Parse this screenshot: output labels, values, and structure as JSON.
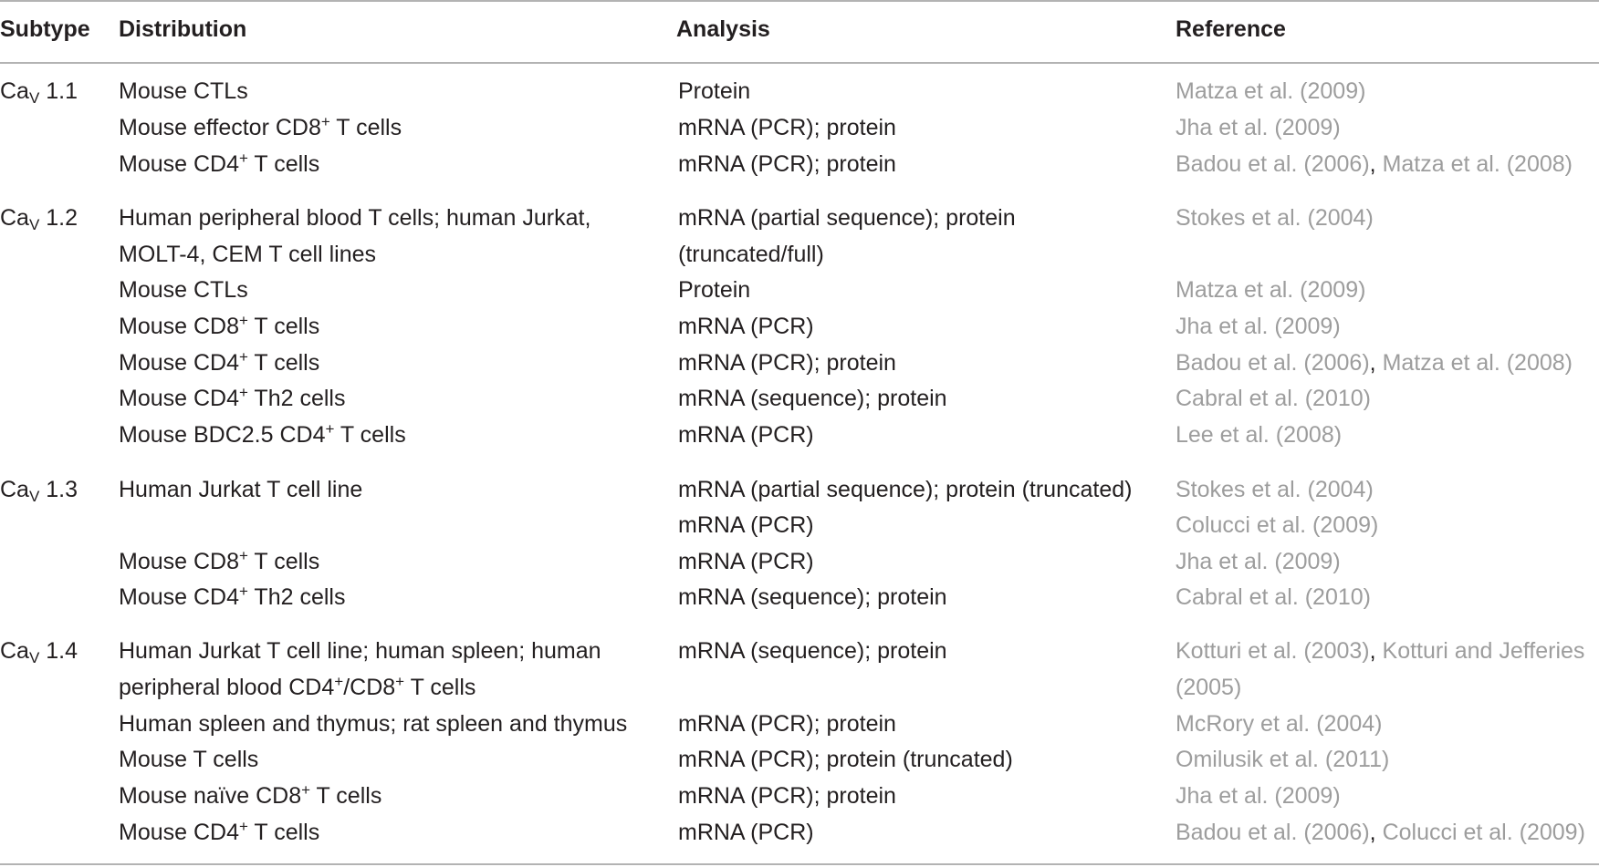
{
  "headers": {
    "subtype": "Subtype",
    "distribution": "Distribution",
    "analysis": "Analysis",
    "reference": "Reference"
  },
  "subtypes": {
    "s11": {
      "prefix": "Ca",
      "sub": "V",
      "suffix": "1.1"
    },
    "s12": {
      "prefix": "Ca",
      "sub": "V",
      "suffix": "1.2"
    },
    "s13": {
      "prefix": "Ca",
      "sub": "V",
      "suffix": "1.3"
    },
    "s14": {
      "prefix": "Ca",
      "sub": "V",
      "suffix": "1.4"
    }
  },
  "rows": {
    "r1": {
      "dist_a": "Mouse CTLs",
      "analysis": "Protein",
      "ref1": "Matza et al. (2009)"
    },
    "r2": {
      "dist_a": "Mouse effector CD8",
      "dist_sup": "+",
      "dist_b": " T cells",
      "analysis": "mRNA (PCR); protein",
      "ref1": "Jha et al. (2009)"
    },
    "r3": {
      "dist_a": "Mouse CD4",
      "dist_sup": "+",
      "dist_b": " T cells",
      "analysis": "mRNA (PCR); protein",
      "ref1": "Badou et al. (2006)",
      "ref_sep": ", ",
      "ref2": "Matza et al. (2008)"
    },
    "r4": {
      "dist_line1": "Human peripheral blood T cells; human Jurkat,",
      "dist_line2": "MOLT-4, CEM T cell lines",
      "analysis_line1": "mRNA (partial sequence); protein",
      "analysis_line2": "(truncated/full)",
      "ref1": "Stokes et al. (2004)"
    },
    "r5": {
      "dist_a": "Mouse CTLs",
      "analysis": "Protein",
      "ref1": "Matza et al. (2009)"
    },
    "r6": {
      "dist_a": "Mouse CD8",
      "dist_sup": "+",
      "dist_b": " T cells",
      "analysis": "mRNA (PCR)",
      "ref1": "Jha et al. (2009)"
    },
    "r7": {
      "dist_a": "Mouse CD4",
      "dist_sup": "+",
      "dist_b": " T cells",
      "analysis": "mRNA (PCR); protein",
      "ref1": "Badou et al. (2006)",
      "ref_sep": ", ",
      "ref2": "Matza et al. (2008)"
    },
    "r8": {
      "dist_a": "Mouse CD4",
      "dist_sup": "+",
      "dist_b": " Th2 cells",
      "analysis": "mRNA (sequence); protein",
      "ref1": "Cabral et al. (2010)"
    },
    "r9": {
      "dist_a": "Mouse BDC2.5 CD4",
      "dist_sup": "+",
      "dist_b": " T cells",
      "analysis": "mRNA (PCR)",
      "ref1": "Lee et al. (2008)"
    },
    "r10": {
      "dist_a": "Human Jurkat T cell line",
      "analysis": "mRNA (partial sequence); protein (truncated)",
      "ref1": "Stokes et al. (2004)"
    },
    "r11": {
      "analysis": "mRNA (PCR)",
      "ref1": "Colucci et al. (2009)"
    },
    "r12": {
      "dist_a": "Mouse CD8",
      "dist_sup": "+",
      "dist_b": " T cells",
      "analysis": "mRNA (PCR)",
      "ref1": "Jha et al. (2009)"
    },
    "r13": {
      "dist_a": "Mouse CD4",
      "dist_sup": "+",
      "dist_b": " Th2 cells",
      "analysis": "mRNA (sequence); protein",
      "ref1": "Cabral et al. (2010)"
    },
    "r14": {
      "dist_line1": "Human Jurkat T cell line; human spleen; human",
      "dist_l2_a": "peripheral blood CD4",
      "dist_l2_sup1": "+",
      "dist_l2_b": "/CD8",
      "dist_l2_sup2": "+",
      "dist_l2_c": " T cells",
      "analysis": "mRNA (sequence); protein",
      "ref1": "Kotturi et al. (2003)",
      "ref_sep": ", ",
      "ref2": "Kotturi and Jefferies",
      "ref2_line2": "(2005)"
    },
    "r15": {
      "dist_a": "Human spleen and thymus; rat spleen and thymus",
      "analysis": "mRNA (PCR); protein",
      "ref1": "McRory et al. (2004)"
    },
    "r16": {
      "dist_a": "Mouse T cells",
      "analysis": "mRNA (PCR); protein (truncated)",
      "ref1": "Omilusik et al. (2011)"
    },
    "r17": {
      "dist_a": "Mouse naïve CD8",
      "dist_sup": "+",
      "dist_b": " T cells",
      "analysis": "mRNA (PCR); protein",
      "ref1": "Jha et al. (2009)"
    },
    "r18": {
      "dist_a": "Mouse CD4",
      "dist_sup": "+",
      "dist_b": " T cells",
      "analysis": "mRNA (PCR)",
      "ref1": "Badou et al. (2006)",
      "ref_sep": ", ",
      "ref2": "Colucci et al. (2009)"
    }
  }
}
